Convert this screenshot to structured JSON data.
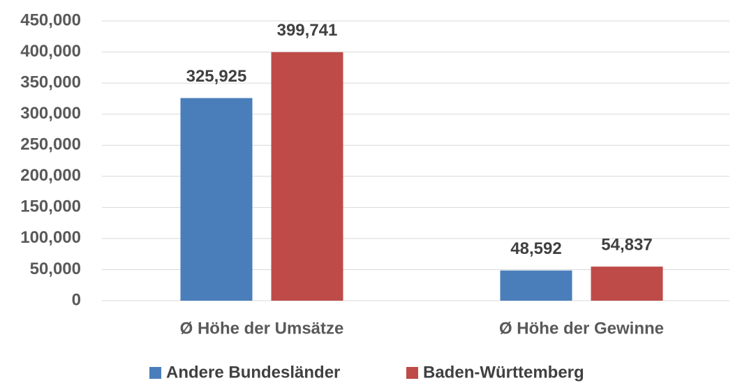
{
  "chart_data": {
    "type": "bar",
    "categories": [
      "Ø Höhe der Umsätze",
      "Ø Höhe der Gewinne"
    ],
    "series": [
      {
        "name": "Andere Bundesländer",
        "color": "#4a7ebb",
        "values": [
          325925,
          48592
        ],
        "value_labels": [
          "325,925",
          "48,592"
        ]
      },
      {
        "name": "Baden-Württemberg",
        "color": "#be4b48",
        "values": [
          399741,
          54837
        ],
        "value_labels": [
          "399,741",
          "54,837"
        ]
      }
    ],
    "ylim": [
      0,
      450000
    ],
    "yticks": [
      0,
      {
        "value": 50000,
        "label": "50,000"
      },
      {
        "value": 100000,
        "label": "100,000"
      },
      {
        "value": 150000,
        "label": "150,000"
      },
      {
        "value": 200000,
        "label": "200,000"
      },
      {
        "value": 250000,
        "label": "250,000"
      },
      {
        "value": 300000,
        "label": "300,000"
      },
      {
        "value": 350000,
        "label": "350,000"
      },
      {
        "value": 400000,
        "label": "400,000"
      },
      {
        "value": 450000,
        "label": "450,000"
      }
    ],
    "grid": true,
    "legend": "bottom"
  }
}
